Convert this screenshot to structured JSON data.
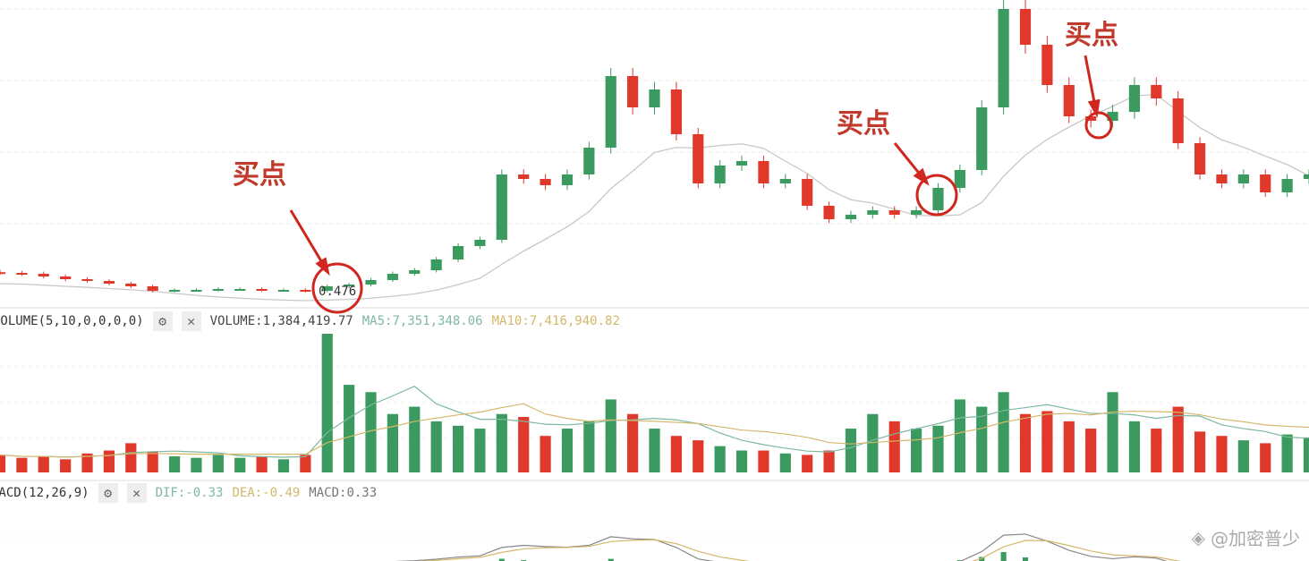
{
  "chart_data": [
    {
      "type": "candlestick",
      "title": "",
      "price_label": "0.476",
      "close": [
        0.636,
        0.628,
        0.604,
        0.58,
        0.564,
        0.54,
        0.516,
        0.476,
        0.484,
        0.484,
        0.492,
        0.492,
        0.484,
        0.484,
        0.476,
        0.516,
        0.532,
        0.572,
        0.628,
        0.66,
        0.756,
        0.876,
        0.932,
        1.516,
        1.476,
        1.42,
        1.516,
        1.756,
        2.396,
        2.116,
        2.276,
        1.876,
        1.436,
        1.596,
        1.636,
        1.436,
        1.476,
        1.236,
        1.116,
        1.156,
        1.196,
        1.156,
        1.196,
        1.396,
        1.556,
        2.116,
        2.996,
        2.676,
        2.316,
        2.036,
        1.996,
        2.076,
        2.316,
        2.196,
        1.796,
        1.516,
        1.436,
        1.516,
        1.356,
        1.476,
        1.516
      ],
      "moving_average_color": "#c8c8c8",
      "up_color": "#3a9a5f",
      "down_color": "#e0382b",
      "annotations": [
        {
          "text": "买点",
          "at_index": 15
        },
        {
          "text": "买点",
          "at_index": 43
        },
        {
          "text": "买点",
          "at_index": 50
        }
      ]
    },
    {
      "type": "bar",
      "indicator": "VOLUME(5,10,0,0,0,0)",
      "values": [
        1.2,
        1.0,
        1.1,
        0.9,
        1.3,
        1.5,
        2.0,
        1.4,
        1.1,
        1.0,
        1.2,
        1.0,
        1.1,
        0.9,
        1.2,
        9.5,
        6.0,
        5.5,
        4.0,
        4.5,
        3.5,
        3.2,
        3.0,
        4.0,
        3.8,
        2.5,
        3.0,
        3.5,
        5.0,
        4.0,
        3.0,
        2.5,
        2.2,
        1.8,
        1.5,
        1.5,
        1.3,
        1.2,
        1.5,
        3.0,
        4.0,
        3.5,
        3.0,
        3.2,
        5.0,
        4.5,
        5.5,
        4.0,
        4.2,
        3.5,
        3.0,
        5.5,
        3.5,
        3.0,
        4.5,
        2.8,
        2.5,
        2.2,
        2.0,
        2.6,
        2.4
      ],
      "legend": {
        "volume": "VOLUME:1,384,419.77",
        "ma5": "MA5:7,351,348.06",
        "ma10": "MA10:7,416,940.82"
      },
      "ma5_color": "#7fb8a0",
      "ma10_color": "#d4b86a"
    },
    {
      "type": "line",
      "indicator": "MACD(12,26,9)",
      "legend": {
        "dif": "DIF:-0.33",
        "dea": "DEA:-0.49",
        "macd": "MACD:0.33"
      },
      "dif_color": "#7fb8a0",
      "dea_color": "#d4b86a"
    }
  ],
  "annotation_text": "买点",
  "watermark": "@加密普少"
}
